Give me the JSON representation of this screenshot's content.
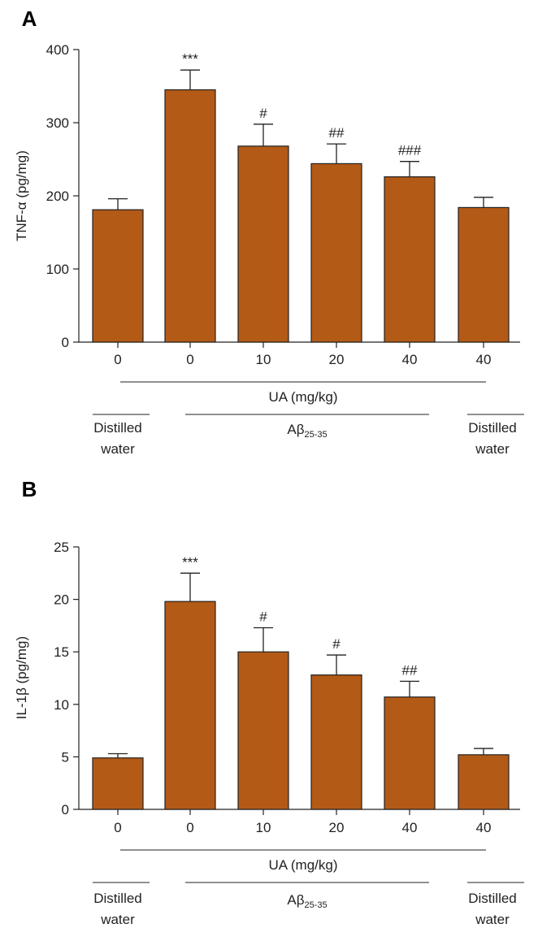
{
  "chart_data": [
    {
      "type": "bar",
      "panel": "A",
      "ylabel": "TNF-α (pg/mg)",
      "ylim": [
        0,
        400
      ],
      "yticks": [
        0,
        100,
        200,
        300,
        400
      ],
      "categories": [
        "0",
        "0",
        "10",
        "20",
        "40",
        "40"
      ],
      "values": [
        181,
        345,
        268,
        244,
        226,
        184
      ],
      "errors": [
        15,
        27,
        30,
        27,
        21,
        14
      ],
      "annotations": [
        "",
        "***",
        "#",
        "##",
        "###",
        ""
      ],
      "xlabel": "UA (mg/kg)",
      "groups": [
        {
          "label_line1": "Distilled",
          "label_line2": "water",
          "span": [
            0,
            0
          ]
        },
        {
          "label_main": "Aβ",
          "label_sub": "25-35",
          "span": [
            1,
            4
          ]
        },
        {
          "label_line1": "Distilled",
          "label_line2": "water",
          "span": [
            5,
            5
          ]
        }
      ],
      "bar_color": "#b35a17"
    },
    {
      "type": "bar",
      "panel": "B",
      "ylabel": "IL-1β (pg/mg)",
      "ylim": [
        0,
        25
      ],
      "yticks": [
        0,
        5,
        10,
        15,
        20,
        25
      ],
      "categories": [
        "0",
        "0",
        "10",
        "20",
        "40",
        "40"
      ],
      "values": [
        4.9,
        19.8,
        15.0,
        12.8,
        10.7,
        5.2
      ],
      "errors": [
        0.4,
        2.7,
        2.3,
        1.9,
        1.5,
        0.6
      ],
      "annotations": [
        "",
        "***",
        "#",
        "#",
        "##",
        ""
      ],
      "xlabel": "UA (mg/kg)",
      "groups": [
        {
          "label_line1": "Distilled",
          "label_line2": "water",
          "span": [
            0,
            0
          ]
        },
        {
          "label_main": "Aβ",
          "label_sub": "25-35",
          "span": [
            1,
            4
          ]
        },
        {
          "label_line1": "Distilled",
          "label_line2": "water",
          "span": [
            5,
            5
          ]
        }
      ],
      "bar_color": "#b35a17"
    }
  ]
}
